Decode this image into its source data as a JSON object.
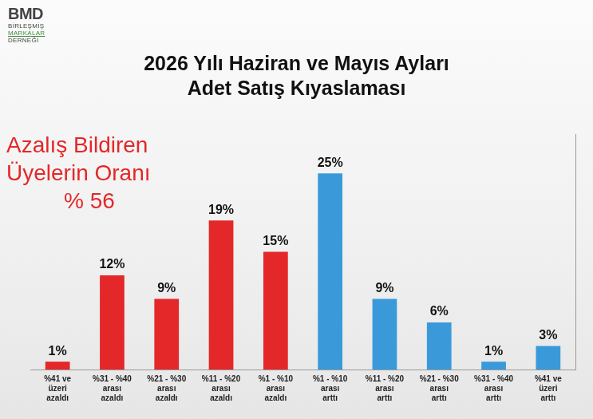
{
  "chart_data": {
    "type": "bar",
    "logo": {
      "title": "BMD",
      "subtitle": "BİRLEŞMİŞ MARKALAR DERNEĞİ"
    },
    "title": "2026 Yılı Haziran ve Mayıs Ayları Adet Satış Kıyaslaması",
    "annotations": [
      "Azalış Bildiren Üyelerin Oranı",
      "% 56"
    ],
    "categories": [
      "%41 ve üzeri azaldı",
      "%31 - %40 arası azaldı",
      "%21 - %30 arası azaldı",
      "%11 - %20 arası azaldı",
      "%1 - %10 arası azaldı",
      "%1 - %10 arası arttı",
      "%11 - %20 arası arttı",
      "%21 - %30 arası arttı",
      "%31 - %40 arası arttı",
      "%41 ve üzeri arttı"
    ],
    "values": [
      1,
      12,
      9,
      19,
      15,
      25,
      9,
      6,
      1,
      3
    ],
    "value_labels": [
      "1%",
      "12%",
      "9%",
      "19%",
      "15%",
      "25%",
      "9%",
      "6%",
      "1%",
      "3%"
    ],
    "colors": [
      "#e42728",
      "#e42728",
      "#e42728",
      "#e42728",
      "#e42728",
      "#3a9ad9",
      "#3a9ad9",
      "#3a9ad9",
      "#3a9ad9",
      "#3a9ad9"
    ],
    "ylim": [
      0,
      30
    ],
    "grid": false,
    "tick_labels": "x",
    "data_labels": true
  }
}
